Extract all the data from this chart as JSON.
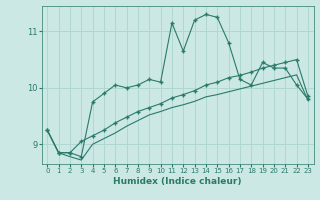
{
  "title": "",
  "xlabel": "Humidex (Indice chaleur)",
  "ylabel": "",
  "bg_color": "#cce8e4",
  "grid_color": "#b0d8d0",
  "line_color": "#2a7a6a",
  "xlim": [
    -0.5,
    23.5
  ],
  "ylim": [
    8.65,
    11.45
  ],
  "yticks": [
    9,
    10,
    11
  ],
  "xticks": [
    0,
    1,
    2,
    3,
    4,
    5,
    6,
    7,
    8,
    9,
    10,
    11,
    12,
    13,
    14,
    15,
    16,
    17,
    18,
    19,
    20,
    21,
    22,
    23
  ],
  "series1_x": [
    0,
    1,
    2,
    3,
    4,
    5,
    6,
    7,
    8,
    9,
    10,
    11,
    12,
    13,
    14,
    15,
    16,
    17,
    18,
    19,
    20,
    21,
    22,
    23
  ],
  "series1_y": [
    9.25,
    8.85,
    8.85,
    8.78,
    9.75,
    9.9,
    10.05,
    10.0,
    10.05,
    10.15,
    10.1,
    11.15,
    10.65,
    11.2,
    11.3,
    11.25,
    10.8,
    10.15,
    10.05,
    10.45,
    10.35,
    10.35,
    10.05,
    9.8
  ],
  "series2_x": [
    0,
    1,
    2,
    3,
    4,
    5,
    6,
    7,
    8,
    9,
    10,
    11,
    12,
    13,
    14,
    15,
    16,
    17,
    18,
    19,
    20,
    21,
    22,
    23
  ],
  "series2_y": [
    9.25,
    8.85,
    8.85,
    9.05,
    9.15,
    9.25,
    9.38,
    9.48,
    9.58,
    9.65,
    9.72,
    9.82,
    9.88,
    9.95,
    10.05,
    10.1,
    10.18,
    10.22,
    10.28,
    10.35,
    10.4,
    10.45,
    10.5,
    9.85
  ],
  "series3_x": [
    0,
    1,
    2,
    3,
    4,
    5,
    6,
    7,
    8,
    9,
    10,
    11,
    12,
    13,
    14,
    15,
    16,
    17,
    18,
    19,
    20,
    21,
    22,
    23
  ],
  "series3_y": [
    9.25,
    8.85,
    8.78,
    8.72,
    9.0,
    9.1,
    9.2,
    9.32,
    9.42,
    9.52,
    9.58,
    9.65,
    9.7,
    9.76,
    9.84,
    9.88,
    9.93,
    9.98,
    10.03,
    10.08,
    10.13,
    10.18,
    10.23,
    9.78
  ],
  "marker": "+",
  "markersize": 3,
  "linewidth": 0.8
}
